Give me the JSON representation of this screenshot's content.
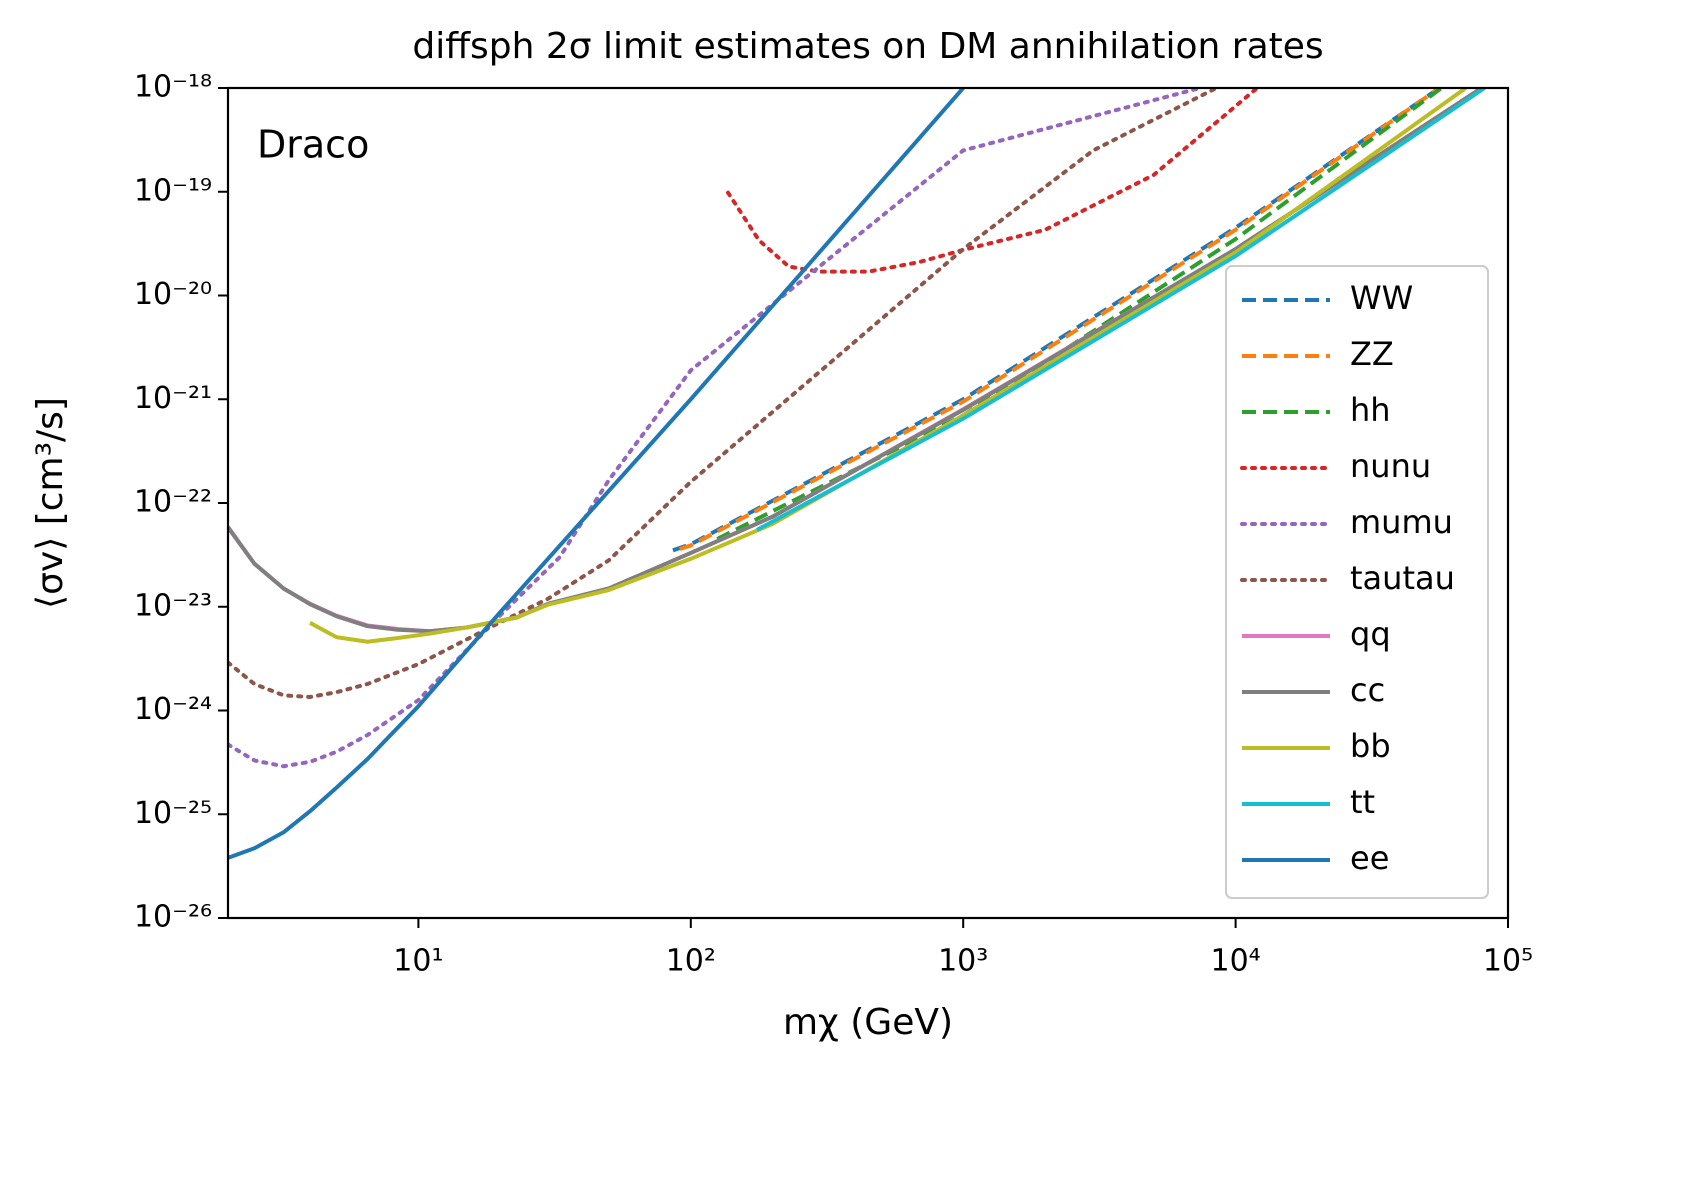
{
  "chart_data": {
    "type": "line",
    "title": "diffsph 2σ limit estimates on DM annihilation rates",
    "annotation": "Draco",
    "xlabel": "mχ (GeV)",
    "ylabel": "⟨σv⟩ [cm³/s]",
    "xscale": "log",
    "yscale": "log",
    "xlim": [
      2,
      100000
    ],
    "ylim": [
      1e-26,
      1e-18
    ],
    "xticks": [
      {
        "value": 10,
        "label": "10¹"
      },
      {
        "value": 100,
        "label": "10²"
      },
      {
        "value": 1000,
        "label": "10³"
      },
      {
        "value": 10000,
        "label": "10⁴"
      },
      {
        "value": 100000,
        "label": "10⁵"
      }
    ],
    "yticks": [
      {
        "value": 1e-26,
        "label": "10⁻²⁶"
      },
      {
        "value": 1e-25,
        "label": "10⁻²⁵"
      },
      {
        "value": 1e-24,
        "label": "10⁻²⁴"
      },
      {
        "value": 1e-23,
        "label": "10⁻²³"
      },
      {
        "value": 1e-22,
        "label": "10⁻²²"
      },
      {
        "value": 1e-21,
        "label": "10⁻²¹"
      },
      {
        "value": 1e-20,
        "label": "10⁻²⁰"
      },
      {
        "value": 1e-19,
        "label": "10⁻¹⁹"
      },
      {
        "value": 1e-18,
        "label": "10⁻¹⁸"
      }
    ],
    "grid": false,
    "legend": "lower right",
    "series": [
      {
        "name": "WW",
        "color": "#1f77b4",
        "linestyle": "dashed",
        "x": [
          86,
          100,
          1000,
          10000,
          56000
        ],
        "values": [
          3.5e-23,
          4e-23,
          1e-21,
          4.5e-20,
          1e-18
        ]
      },
      {
        "name": "ZZ",
        "color": "#ff7f0e",
        "linestyle": "dashed",
        "x": [
          91,
          100,
          1000,
          10000,
          56000
        ],
        "values": [
          3.6e-23,
          3.9e-23,
          9.5e-22,
          4.3e-20,
          1e-18
        ]
      },
      {
        "name": "hh",
        "color": "#2ca02c",
        "linestyle": "dashed",
        "x": [
          125,
          1000,
          10000,
          57000
        ],
        "values": [
          4.5e-23,
          7e-22,
          3.5e-20,
          1e-18
        ]
      },
      {
        "name": "nunu",
        "color": "#d62728",
        "linestyle": "dotted",
        "x": [
          137,
          178,
          229,
          295,
          450,
          690,
          1000,
          2000,
          5000,
          12000
        ],
        "values": [
          9.8e-20,
          3.4e-20,
          1.9e-20,
          1.7e-20,
          1.7e-20,
          2.1e-20,
          2.75e-20,
          4.3e-20,
          1.45e-19,
          1e-18
        ]
      },
      {
        "name": "mumu",
        "color": "#9467bd",
        "linestyle": "dotted",
        "x": [
          2,
          2.5,
          3.2,
          4,
          5,
          6.5,
          10,
          20,
          33,
          50,
          100,
          1000,
          7400
        ],
        "values": [
          4.7e-25,
          3.3e-25,
          2.9e-25,
          3.2e-25,
          4e-25,
          5.8e-25,
          1.26e-24,
          8.3e-24,
          3e-23,
          1.66e-22,
          1.9e-21,
          2.5e-19,
          1e-18
        ]
      },
      {
        "name": "tautau",
        "color": "#8c564b",
        "linestyle": "dotted",
        "x": [
          2,
          2.5,
          3.2,
          4,
          5,
          6.5,
          10,
          20,
          30,
          50,
          100,
          1000,
          3000,
          8500
        ],
        "values": [
          2.9e-24,
          1.8e-24,
          1.4e-24,
          1.35e-24,
          1.5e-24,
          1.8e-24,
          2.8e-24,
          7.1e-24,
          1.2e-23,
          2.8e-23,
          1.6e-22,
          2.8e-20,
          2.5e-19,
          1e-18
        ]
      },
      {
        "name": "qq",
        "color": "#e377c2",
        "linestyle": "solid",
        "x": [
          2,
          2.5,
          3.2,
          4,
          5,
          6.5,
          8.4,
          11,
          15,
          23,
          30,
          50,
          100,
          200,
          1000,
          10000,
          80000
        ],
        "values": [
          5.9e-23,
          2.6e-23,
          1.5e-23,
          1.07e-23,
          8.2e-24,
          6.6e-24,
          6.1e-24,
          5.8e-24,
          6.3e-24,
          7.9e-24,
          1.07e-23,
          1.5e-23,
          3.3e-23,
          7.4e-23,
          8e-22,
          2.8e-20,
          1e-18
        ]
      },
      {
        "name": "cc",
        "color": "#7f7f7f",
        "linestyle": "solid",
        "x": [
          2,
          2.5,
          3.2,
          4,
          5,
          6.5,
          8.4,
          11,
          15,
          23,
          30,
          50,
          100,
          200,
          1000,
          10000,
          80000
        ],
        "values": [
          5.8e-23,
          2.6e-23,
          1.5e-23,
          1.06e-23,
          8.1e-24,
          6.5e-24,
          6e-24,
          5.8e-24,
          6.3e-24,
          7.9e-24,
          1.07e-23,
          1.5e-23,
          3.3e-23,
          7.4e-23,
          7.9e-22,
          2.8e-20,
          1e-18
        ]
      },
      {
        "name": "bb",
        "color": "#bcbd22",
        "linestyle": "solid",
        "x": [
          4,
          5,
          6.5,
          8.4,
          11,
          15,
          23,
          30,
          50,
          100,
          200,
          1000,
          10000,
          70000
        ],
        "values": [
          7e-24,
          5.1e-24,
          4.6e-24,
          5e-24,
          5.5e-24,
          6.3e-24,
          7.9e-24,
          1.05e-23,
          1.45e-23,
          2.9e-23,
          6.3e-23,
          7e-22,
          2.6e-20,
          1e-18
        ]
      },
      {
        "name": "tt",
        "color": "#17becf",
        "linestyle": "solid",
        "x": [
          175,
          1000,
          10000,
          82000
        ],
        "values": [
          5.5e-23,
          6.5e-22,
          2.4e-20,
          1e-18
        ]
      },
      {
        "name": "ee",
        "color": "#1f77b4",
        "linestyle": "solid",
        "x": [
          2,
          2.5,
          3.2,
          4,
          5,
          6.5,
          10,
          20,
          100,
          1000
        ],
        "values": [
          3.8e-26,
          4.7e-26,
          6.7e-26,
          1.07e-25,
          1.8e-25,
          3.4e-25,
          1.1e-24,
          8.9e-24,
          1e-21,
          1e-18
        ]
      }
    ]
  }
}
